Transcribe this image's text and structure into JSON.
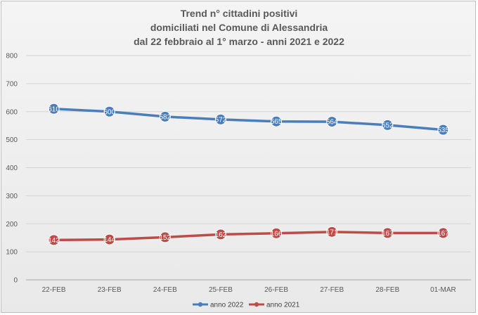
{
  "chart_data": {
    "type": "line",
    "title": [
      "Trend n° cittadini positivi",
      "domiciliati nel Comune di Alessandria",
      "dal 22 febbraio al 1° marzo - anni 2021 e 2022"
    ],
    "categories": [
      "22-FEB",
      "23-FEB",
      "24-FEB",
      "25-FEB",
      "26-FEB",
      "27-FEB",
      "28-FEB",
      "01-MAR"
    ],
    "ylim": [
      0,
      800
    ],
    "yticks": [
      0,
      100,
      200,
      300,
      400,
      500,
      600,
      700,
      800
    ],
    "grid": true,
    "legend_position": "bottom",
    "series": [
      {
        "name": "anno 2022",
        "color": "#4a7ebb",
        "values": [
          610,
          600,
          582,
          572,
          565,
          564,
          552,
          535
        ]
      },
      {
        "name": "anno 2021",
        "color": "#be4b48",
        "values": [
          142,
          144,
          152,
          162,
          166,
          171,
          167,
          167
        ]
      }
    ]
  }
}
